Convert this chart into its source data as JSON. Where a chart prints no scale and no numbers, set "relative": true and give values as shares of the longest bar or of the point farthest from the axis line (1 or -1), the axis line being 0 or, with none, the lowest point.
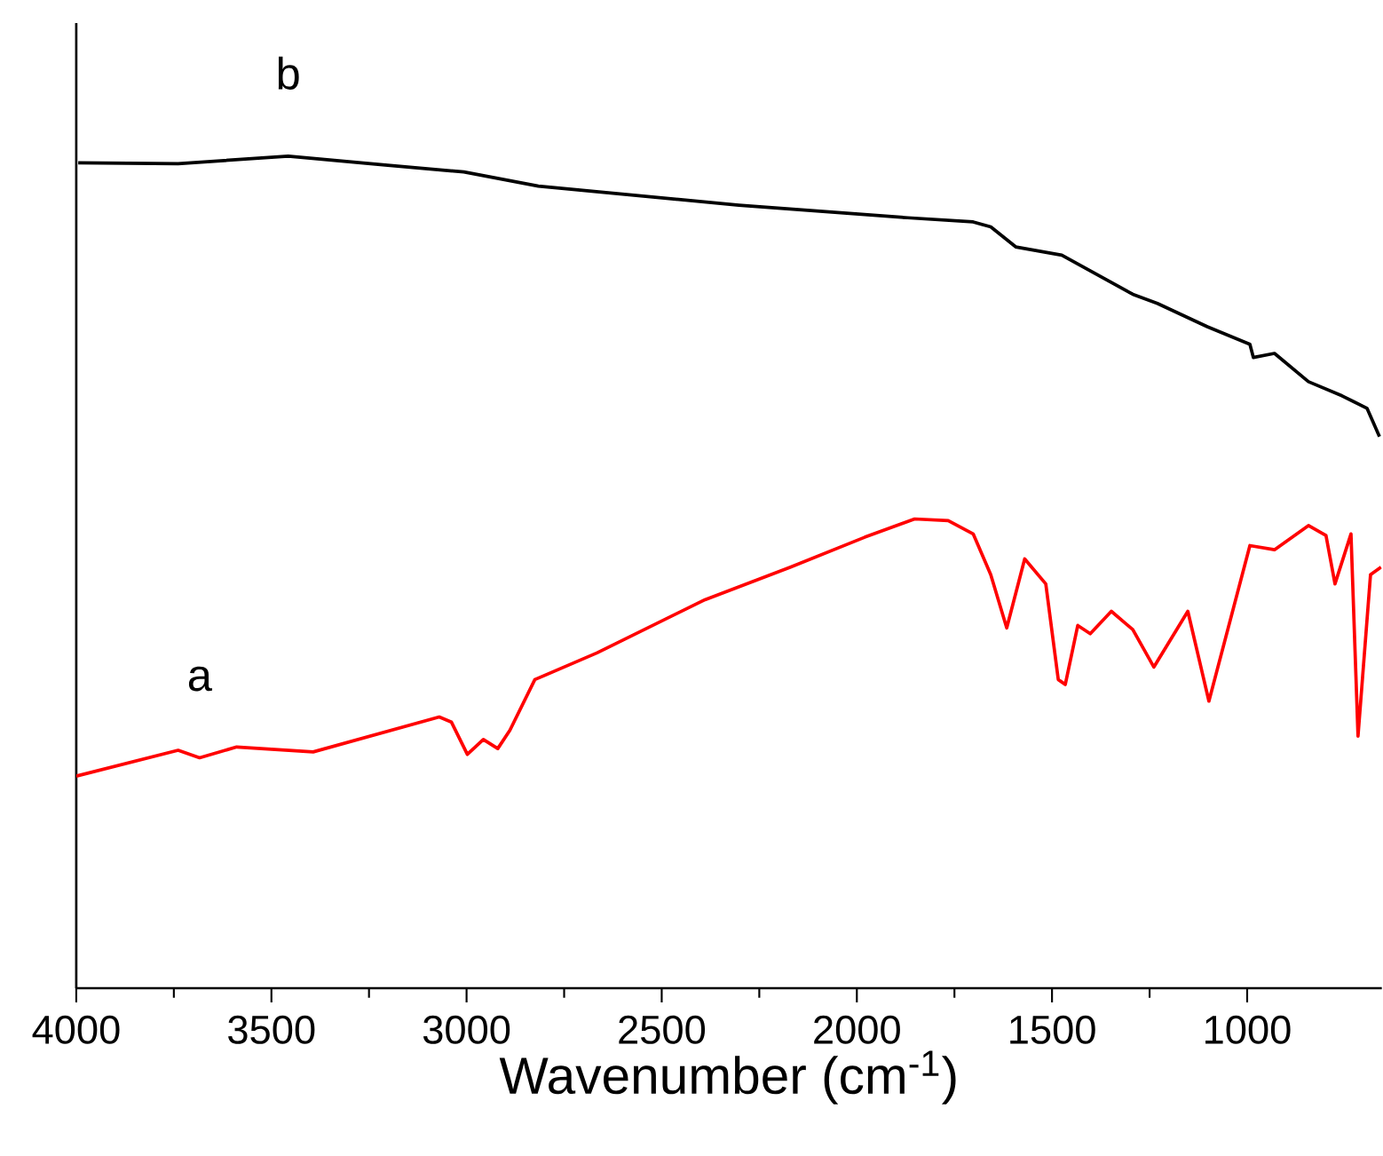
{
  "chart_data": {
    "type": "line",
    "relative": true,
    "xlabel": "Wavenumber (cm$^{-1}$)",
    "xlim": [
      4000,
      655
    ],
    "xticks": [
      4000,
      3500,
      3000,
      2500,
      2000,
      1500,
      1000
    ],
    "grid": false,
    "legend": false,
    "marker": "none",
    "line_style": "solid",
    "series": [
      {
        "name": "a",
        "color": "#ff0000",
        "x": [
          4000,
          3739,
          3684,
          3589,
          3393,
          3070,
          3039,
          2998,
          2957,
          2920,
          2889,
          2825,
          2666,
          2389,
          2170,
          1980,
          1852,
          1766,
          1702,
          1657,
          1616,
          1570,
          1516,
          1484,
          1466,
          1434,
          1402,
          1348,
          1293,
          1239,
          1152,
          1098,
          993,
          930,
          843,
          798,
          775,
          734,
          716,
          684,
          657
        ],
        "values": [
          0.255,
          0.286,
          0.277,
          0.29,
          0.284,
          0.326,
          0.32,
          0.281,
          0.299,
          0.288,
          0.31,
          0.371,
          0.403,
          0.467,
          0.506,
          0.542,
          0.564,
          0.562,
          0.546,
          0.497,
          0.433,
          0.516,
          0.486,
          0.371,
          0.365,
          0.436,
          0.426,
          0.453,
          0.431,
          0.386,
          0.453,
          0.345,
          0.532,
          0.527,
          0.556,
          0.544,
          0.486,
          0.546,
          0.303,
          0.497,
          0.506
        ]
      },
      {
        "name": "b",
        "color": "#000000",
        "x": [
          3995,
          3739,
          3457,
          3202,
          3007,
          2816,
          2302,
          1870,
          1702,
          1657,
          1593,
          1475,
          1293,
          1230,
          1102,
          993,
          984,
          930,
          843,
          757,
          693,
          661
        ],
        "values": [
          0.992,
          0.991,
          1,
          0.989,
          0.981,
          0.964,
          0.941,
          0.926,
          0.921,
          0.915,
          0.891,
          0.881,
          0.834,
          0.823,
          0.795,
          0.774,
          0.758,
          0.763,
          0.729,
          0.712,
          0.697,
          0.663
        ]
      }
    ]
  }
}
